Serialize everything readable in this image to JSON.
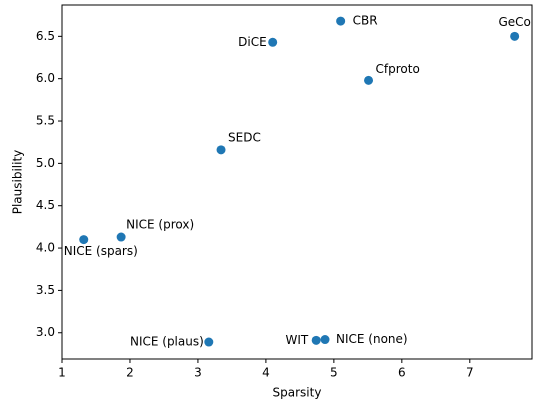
{
  "chart_data": {
    "type": "scatter",
    "xlabel": "Sparsity",
    "ylabel": "Plausibility",
    "x": [
      5.1,
      7.66,
      4.1,
      5.51,
      3.34,
      1.87,
      1.32,
      3.16,
      4.74,
      4.87
    ],
    "y": [
      6.68,
      6.5,
      6.43,
      5.98,
      5.16,
      4.13,
      4.1,
      2.89,
      2.91,
      2.92
    ],
    "labels": [
      "CBR",
      "GeCo",
      "DiCE",
      "Cfproto",
      "SEDC",
      "NICE (prox)",
      "NICE (spars)",
      "NICE (plaus)",
      "WIT",
      "NICE (none)"
    ],
    "color": "#1f77b4",
    "xlim": [
      1.0,
      7.93
    ],
    "ylim": [
      2.69,
      6.87
    ],
    "xticks": [
      1,
      2,
      3,
      4,
      5,
      6,
      7
    ],
    "yticks": [
      {
        "value": 3.0,
        "label": "3.0"
      },
      3.5,
      {
        "value": 4.0,
        "label": "4.0"
      },
      4.5,
      {
        "value": 5.0,
        "label": "5.0"
      },
      5.5,
      {
        "value": 6.0,
        "label": "6.0"
      },
      6.5
    ]
  }
}
